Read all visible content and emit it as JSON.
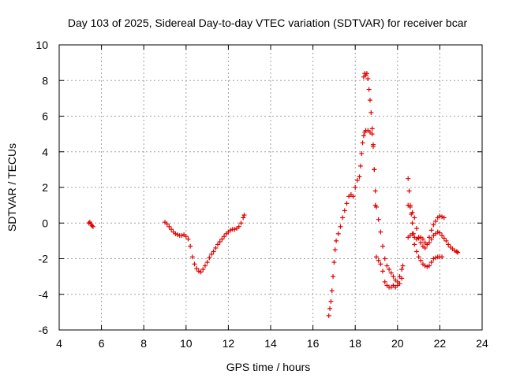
{
  "chart_data": {
    "type": "scatter",
    "title": "Day 103 of 2025, Sidereal Day-to-day VTEC variation (SDTVAR) for receiver bcar",
    "xlabel": "GPS time / hours",
    "ylabel": "SDTVAR / TECUs",
    "xlim": [
      4,
      24
    ],
    "ylim": [
      -6,
      10
    ],
    "xticks": [
      "4",
      "6",
      "8",
      "10",
      "12",
      "14",
      "16",
      "18",
      "20",
      "22",
      "24"
    ],
    "yticks": [
      "-6",
      "-4",
      "-2",
      "0",
      "2",
      "4",
      "6",
      "8",
      "10"
    ],
    "grid": true,
    "marker": "plus",
    "color": "#e00000",
    "series": [
      {
        "points": [
          [
            5.4,
            0.0
          ],
          [
            5.45,
            0.05
          ],
          [
            5.5,
            -0.05
          ],
          [
            5.55,
            -0.15
          ],
          [
            5.6,
            -0.2
          ],
          [
            9.0,
            0.05
          ],
          [
            9.1,
            -0.05
          ],
          [
            9.2,
            -0.2
          ],
          [
            9.3,
            -0.35
          ],
          [
            9.4,
            -0.5
          ],
          [
            9.5,
            -0.6
          ],
          [
            9.6,
            -0.65
          ],
          [
            9.7,
            -0.7
          ],
          [
            9.8,
            -0.7
          ],
          [
            9.9,
            -0.65
          ],
          [
            10.0,
            -0.75
          ],
          [
            10.1,
            -0.9
          ],
          [
            10.2,
            -1.3
          ],
          [
            10.3,
            -1.9
          ],
          [
            10.4,
            -2.3
          ],
          [
            10.5,
            -2.55
          ],
          [
            10.6,
            -2.7
          ],
          [
            10.7,
            -2.75
          ],
          [
            10.8,
            -2.6
          ],
          [
            10.9,
            -2.4
          ],
          [
            11.0,
            -2.2
          ],
          [
            11.1,
            -1.95
          ],
          [
            11.2,
            -1.75
          ],
          [
            11.3,
            -1.6
          ],
          [
            11.4,
            -1.4
          ],
          [
            11.5,
            -1.2
          ],
          [
            11.6,
            -1.05
          ],
          [
            11.7,
            -0.9
          ],
          [
            11.8,
            -0.75
          ],
          [
            11.9,
            -0.6
          ],
          [
            12.0,
            -0.5
          ],
          [
            12.1,
            -0.4
          ],
          [
            12.2,
            -0.35
          ],
          [
            12.3,
            -0.35
          ],
          [
            12.4,
            -0.3
          ],
          [
            12.5,
            -0.2
          ],
          [
            12.6,
            0.0
          ],
          [
            12.7,
            0.3
          ],
          [
            12.75,
            0.45
          ],
          [
            16.75,
            -5.2
          ],
          [
            16.8,
            -4.8
          ],
          [
            16.85,
            -4.4
          ],
          [
            16.9,
            -3.8
          ],
          [
            16.95,
            -3.0
          ],
          [
            17.0,
            -2.2
          ],
          [
            17.05,
            -1.5
          ],
          [
            17.1,
            -1.0
          ],
          [
            17.2,
            -0.6
          ],
          [
            17.3,
            -0.2
          ],
          [
            17.4,
            0.3
          ],
          [
            17.5,
            0.7
          ],
          [
            17.6,
            1.1
          ],
          [
            17.7,
            1.5
          ],
          [
            17.8,
            1.6
          ],
          [
            17.9,
            1.5
          ],
          [
            18.0,
            2.0
          ],
          [
            18.1,
            2.4
          ],
          [
            18.2,
            2.6
          ],
          [
            18.25,
            3.2
          ],
          [
            18.3,
            3.9
          ],
          [
            18.35,
            4.5
          ],
          [
            18.4,
            4.9
          ],
          [
            18.45,
            5.1
          ],
          [
            18.5,
            5.2
          ],
          [
            18.6,
            5.2
          ],
          [
            18.7,
            5.1
          ],
          [
            18.8,
            5.0
          ],
          [
            18.85,
            4.3
          ],
          [
            18.9,
            3.0
          ],
          [
            18.95,
            1.8
          ],
          [
            19.0,
            0.9
          ],
          [
            19.1,
            0.2
          ],
          [
            19.2,
            -0.5
          ],
          [
            19.3,
            -1.3
          ],
          [
            19.4,
            -2.0
          ],
          [
            19.5,
            -2.4
          ],
          [
            19.6,
            -2.6
          ],
          [
            19.7,
            -2.8
          ],
          [
            19.8,
            -3.0
          ],
          [
            19.9,
            -3.2
          ],
          [
            20.0,
            -3.3
          ],
          [
            20.1,
            -3.0
          ],
          [
            20.2,
            -2.6
          ],
          [
            20.25,
            -2.4
          ],
          [
            18.4,
            8.2
          ],
          [
            18.45,
            8.4
          ],
          [
            18.5,
            8.3
          ],
          [
            18.55,
            8.4
          ],
          [
            18.6,
            8.1
          ],
          [
            18.65,
            7.5
          ],
          [
            18.7,
            6.9
          ],
          [
            18.75,
            6.2
          ],
          [
            18.8,
            5.3
          ],
          [
            18.85,
            4.4
          ],
          [
            18.9,
            3.0
          ],
          [
            18.95,
            1.0
          ],
          [
            19.0,
            -1.9
          ],
          [
            19.1,
            -2.1
          ],
          [
            19.2,
            -2.3
          ],
          [
            19.3,
            -2.7
          ],
          [
            19.4,
            -3.3
          ],
          [
            19.5,
            -3.5
          ],
          [
            19.6,
            -3.6
          ],
          [
            19.7,
            -3.6
          ],
          [
            19.8,
            -3.5
          ],
          [
            19.9,
            -3.6
          ],
          [
            20.0,
            -3.5
          ],
          [
            20.1,
            -3.4
          ],
          [
            20.2,
            -3.1
          ],
          [
            20.5,
            2.5
          ],
          [
            20.55,
            1.8
          ],
          [
            20.6,
            1.0
          ],
          [
            20.65,
            0.5
          ],
          [
            20.7,
            0.0
          ],
          [
            20.75,
            -0.6
          ],
          [
            20.8,
            -1.2
          ],
          [
            20.9,
            -1.6
          ],
          [
            21.0,
            -1.9
          ],
          [
            21.1,
            -2.1
          ],
          [
            21.2,
            -2.3
          ],
          [
            21.3,
            -2.4
          ],
          [
            21.4,
            -2.45
          ],
          [
            21.5,
            -2.4
          ],
          [
            21.6,
            -2.2
          ],
          [
            21.7,
            -2.0
          ],
          [
            21.8,
            -1.95
          ],
          [
            21.9,
            -1.9
          ],
          [
            22.0,
            -1.9
          ],
          [
            22.1,
            -1.9
          ],
          [
            20.5,
            1.0
          ],
          [
            20.6,
            0.9
          ],
          [
            20.7,
            0.6
          ],
          [
            20.8,
            0.3
          ],
          [
            20.9,
            -0.3
          ],
          [
            21.0,
            -0.8
          ],
          [
            21.1,
            -1.1
          ],
          [
            21.2,
            -1.3
          ],
          [
            21.3,
            -1.4
          ],
          [
            21.4,
            -1.2
          ],
          [
            21.5,
            -0.8
          ],
          [
            21.6,
            -0.4
          ],
          [
            21.7,
            -0.1
          ],
          [
            21.8,
            0.1
          ],
          [
            21.9,
            0.3
          ],
          [
            22.0,
            0.4
          ],
          [
            22.1,
            0.35
          ],
          [
            22.2,
            0.3
          ],
          [
            20.5,
            -0.8
          ],
          [
            20.6,
            -0.7
          ],
          [
            20.7,
            -0.6
          ],
          [
            20.8,
            -0.8
          ],
          [
            20.9,
            -0.9
          ],
          [
            21.0,
            -0.85
          ],
          [
            21.1,
            -0.8
          ],
          [
            21.2,
            -0.9
          ],
          [
            21.3,
            -1.1
          ],
          [
            21.4,
            -1.2
          ],
          [
            21.5,
            -1.1
          ],
          [
            21.6,
            -0.9
          ],
          [
            21.7,
            -0.7
          ],
          [
            21.8,
            -0.6
          ],
          [
            21.9,
            -0.5
          ],
          [
            22.0,
            -0.55
          ],
          [
            22.1,
            -0.7
          ],
          [
            22.2,
            -0.85
          ],
          [
            22.3,
            -1.0
          ],
          [
            22.4,
            -1.2
          ],
          [
            22.5,
            -1.35
          ],
          [
            22.6,
            -1.45
          ],
          [
            22.7,
            -1.55
          ],
          [
            22.8,
            -1.6
          ],
          [
            22.85,
            -1.65
          ]
        ]
      }
    ]
  }
}
